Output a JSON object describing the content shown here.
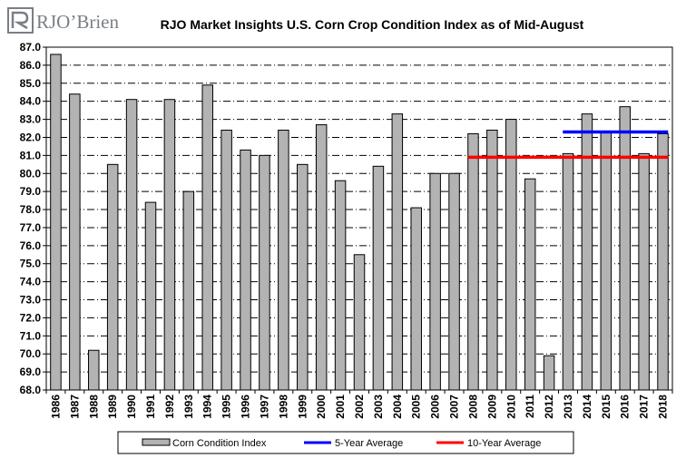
{
  "logo": {
    "text": "RJO’Brien"
  },
  "legend": [
    {
      "label": "Corn Condition Index",
      "kind": "bar",
      "color": "#b3b3b3"
    },
    {
      "label": "5-Year Average",
      "kind": "line",
      "color": "#0000ff"
    },
    {
      "label": "10-Year Average",
      "kind": "line",
      "color": "#ff0000"
    }
  ],
  "chart_data": {
    "type": "bar",
    "title": "RJO Market Insights U.S. Corn Crop Condition Index as of Mid-August",
    "xlabel": "",
    "ylabel": "",
    "ylim": [
      68,
      87
    ],
    "y_ticks": [
      "68.0",
      "69.0",
      "70.0",
      "71.0",
      "72.0",
      "73.0",
      "74.0",
      "75.0",
      "76.0",
      "77.0",
      "78.0",
      "79.0",
      "80.0",
      "81.0",
      "82.0",
      "83.0",
      "84.0",
      "85.0",
      "86.0",
      "87.0"
    ],
    "grid": true,
    "legend_position": "bottom",
    "categories": [
      "1986",
      "1987",
      "1988",
      "1989",
      "1990",
      "1991",
      "1992",
      "1993",
      "1994",
      "1995",
      "1996",
      "1997",
      "1998",
      "1999",
      "2000",
      "2001",
      "2002",
      "2003",
      "2004",
      "2005",
      "2006",
      "2007",
      "2008",
      "2009",
      "2010",
      "2011",
      "2012",
      "2013",
      "2014",
      "2015",
      "2016",
      "2017",
      "2018"
    ],
    "series": [
      {
        "name": "Corn Condition Index",
        "type": "bar",
        "color": "#b3b3b3",
        "values": [
          86.6,
          84.4,
          70.2,
          80.5,
          84.1,
          78.4,
          84.1,
          79.0,
          84.9,
          82.4,
          81.3,
          81.0,
          82.4,
          80.5,
          82.7,
          79.6,
          75.5,
          80.4,
          83.3,
          78.1,
          80.0,
          80.0,
          82.2,
          82.4,
          83.0,
          79.7,
          69.9,
          81.1,
          83.3,
          82.3,
          83.7,
          81.1,
          82.2
        ]
      },
      {
        "name": "5-Year Average",
        "type": "line",
        "color": "#0000ff",
        "x_start": "2013",
        "x_end": "2018",
        "value": 82.3
      },
      {
        "name": "10-Year Average",
        "type": "line",
        "color": "#ff0000",
        "x_start": "2008",
        "x_end": "2018",
        "value": 80.9
      }
    ]
  }
}
